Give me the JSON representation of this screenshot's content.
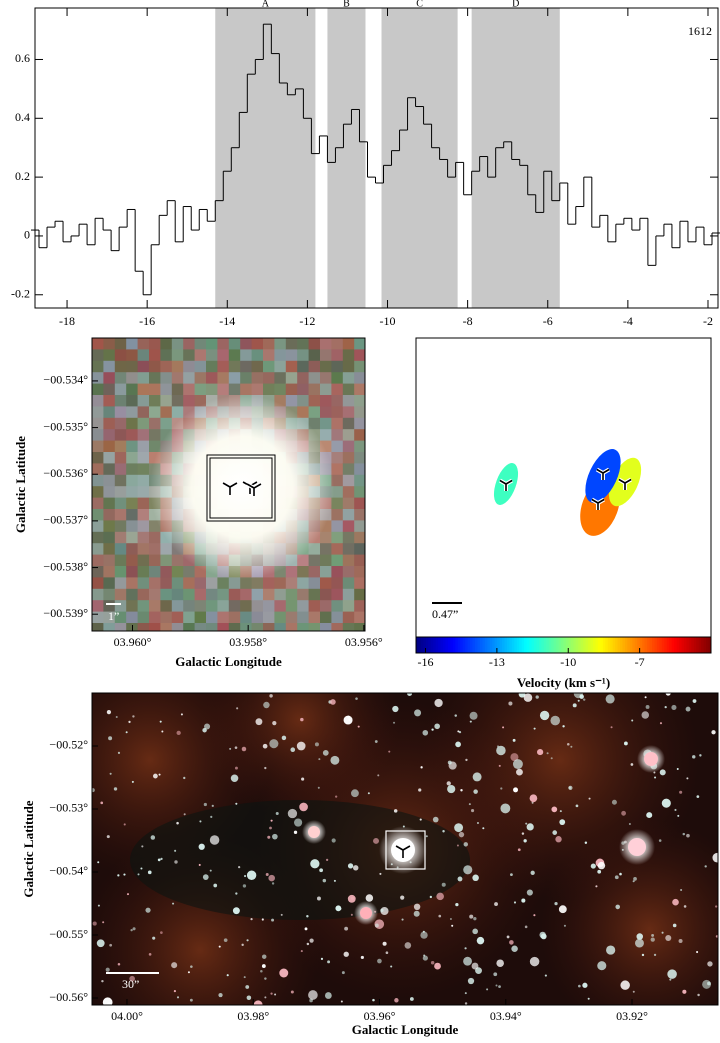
{
  "chart_data": [
    {
      "type": "step",
      "x": [
        -18.8,
        -18.6,
        -18.4,
        -18.2,
        -18.0,
        -17.8,
        -17.6,
        -17.4,
        -17.2,
        -17.0,
        -16.8,
        -16.6,
        -16.4,
        -16.2,
        -16.0,
        -15.8,
        -15.6,
        -15.4,
        -15.2,
        -15.0,
        -14.8,
        -14.6,
        -14.4,
        -14.2,
        -14.0,
        -13.8,
        -13.6,
        -13.4,
        -13.2,
        -13.0,
        -12.8,
        -12.6,
        -12.4,
        -12.2,
        -12.0,
        -11.8,
        -11.6,
        -11.4,
        -11.2,
        -11.0,
        -10.8,
        -10.6,
        -10.4,
        -10.2,
        -10.0,
        -9.8,
        -9.6,
        -9.4,
        -9.2,
        -9.0,
        -8.8,
        -8.6,
        -8.4,
        -8.2,
        -8.0,
        -7.8,
        -7.6,
        -7.4,
        -7.2,
        -7.0,
        -6.8,
        -6.6,
        -6.4,
        -6.2,
        -6.0,
        -5.8,
        -5.6,
        -5.4,
        -5.2,
        -5.0,
        -4.8,
        -4.6,
        -4.4,
        -4.2,
        -4.0,
        -3.8,
        -3.6,
        -3.4,
        -3.2,
        -3.0,
        -2.8,
        -2.6,
        -2.4,
        -2.2,
        -2.0,
        -1.8
      ],
      "values": [
        0.02,
        -0.04,
        0.03,
        0.05,
        -0.02,
        0.0,
        0.04,
        -0.03,
        0.06,
        0.02,
        -0.05,
        0.03,
        0.09,
        -0.12,
        -0.2,
        -0.03,
        0.07,
        0.12,
        -0.02,
        0.1,
        0.02,
        0.09,
        0.05,
        0.12,
        0.22,
        0.3,
        0.42,
        0.55,
        0.6,
        0.72,
        0.62,
        0.52,
        0.48,
        0.5,
        0.4,
        0.28,
        0.34,
        0.25,
        0.3,
        0.38,
        0.43,
        0.32,
        0.2,
        0.18,
        0.24,
        0.29,
        0.36,
        0.47,
        0.44,
        0.38,
        0.3,
        0.26,
        0.2,
        0.25,
        0.14,
        0.22,
        0.27,
        0.2,
        0.3,
        0.32,
        0.26,
        0.24,
        0.14,
        0.08,
        0.22,
        0.12,
        0.18,
        0.04,
        0.1,
        0.2,
        0.03,
        0.07,
        -0.02,
        0.04,
        0.06,
        0.02,
        0.06,
        -0.1,
        0.0,
        0.04,
        -0.04,
        0.05,
        -0.02,
        0.03,
        -0.03,
        0.01
      ],
      "color": "#000000",
      "xlim": [
        -18.8,
        -1.75
      ],
      "ylim": [
        -0.245,
        0.775
      ],
      "xticks": [
        -18,
        -16,
        -14,
        -12,
        -10,
        -8,
        -6,
        -4,
        -2
      ],
      "yticks": [
        -0.2,
        0,
        0.2,
        0.4,
        0.6
      ],
      "annotation": "1612",
      "region_color": "#c8c8c8",
      "regions": [
        {
          "label": "A",
          "start": -14.3,
          "end": -11.8
        },
        {
          "label": "B",
          "start": -11.5,
          "end": -10.55
        },
        {
          "label": "C",
          "start": -10.15,
          "end": -8.25
        },
        {
          "label": "D",
          "start": -7.9,
          "end": -5.7
        }
      ]
    },
    {
      "type": "image",
      "xlabel": "Galactic Longitude",
      "ylabel": "Galactic Latitude",
      "xlim": [
        3.9607,
        3.95598
      ],
      "ylim": [
        -0.53936,
        -0.53308
      ],
      "xticks": [
        {
          "value": 3.96,
          "label": "03.960°"
        },
        {
          "value": 3.958,
          "label": "03.958°"
        },
        {
          "value": 3.956,
          "label": "03.956°"
        }
      ],
      "yticks": [
        {
          "value": -0.534,
          "label": "−00.534°"
        },
        {
          "value": -0.535,
          "label": "−00.535°"
        },
        {
          "value": -0.536,
          "label": "−00.536°"
        },
        {
          "value": -0.537,
          "label": "−00.537°"
        },
        {
          "value": -0.538,
          "label": "−00.538°"
        },
        {
          "value": -0.539,
          "label": "−00.539°"
        }
      ],
      "scalebar_label": "1”"
    },
    {
      "type": "ellipse",
      "values": [
        -11,
        -7,
        -9,
        -14
      ],
      "colormap": "jet",
      "clim": [
        -16.4,
        -4
      ],
      "colorbar_label": "Velocity (km s⁻¹)",
      "colorbar_ticks": [
        -16,
        -13,
        -10,
        -7
      ],
      "scalebar_label": "0.47”"
    },
    {
      "type": "image",
      "xlabel": "Galactic Longitude",
      "ylabel": "Galactic Latitude",
      "xlim": [
        4.00554,
        3.90638
      ],
      "ylim": [
        -0.56111,
        -0.51159
      ],
      "xticks": [
        {
          "value": 4.0,
          "label": "04.00°"
        },
        {
          "value": 3.98,
          "label": "03.98°"
        },
        {
          "value": 3.96,
          "label": "03.96°"
        },
        {
          "value": 3.94,
          "label": "03.94°"
        },
        {
          "value": 3.92,
          "label": "03.92°"
        }
      ],
      "yticks": [
        {
          "value": -0.52,
          "label": "−00.52°"
        },
        {
          "value": -0.53,
          "label": "−00.53°"
        },
        {
          "value": -0.54,
          "label": "−00.54°"
        },
        {
          "value": -0.55,
          "label": "−00.55°"
        },
        {
          "value": -0.56,
          "label": "−00.56°"
        }
      ],
      "scalebar_label": "30”"
    }
  ]
}
